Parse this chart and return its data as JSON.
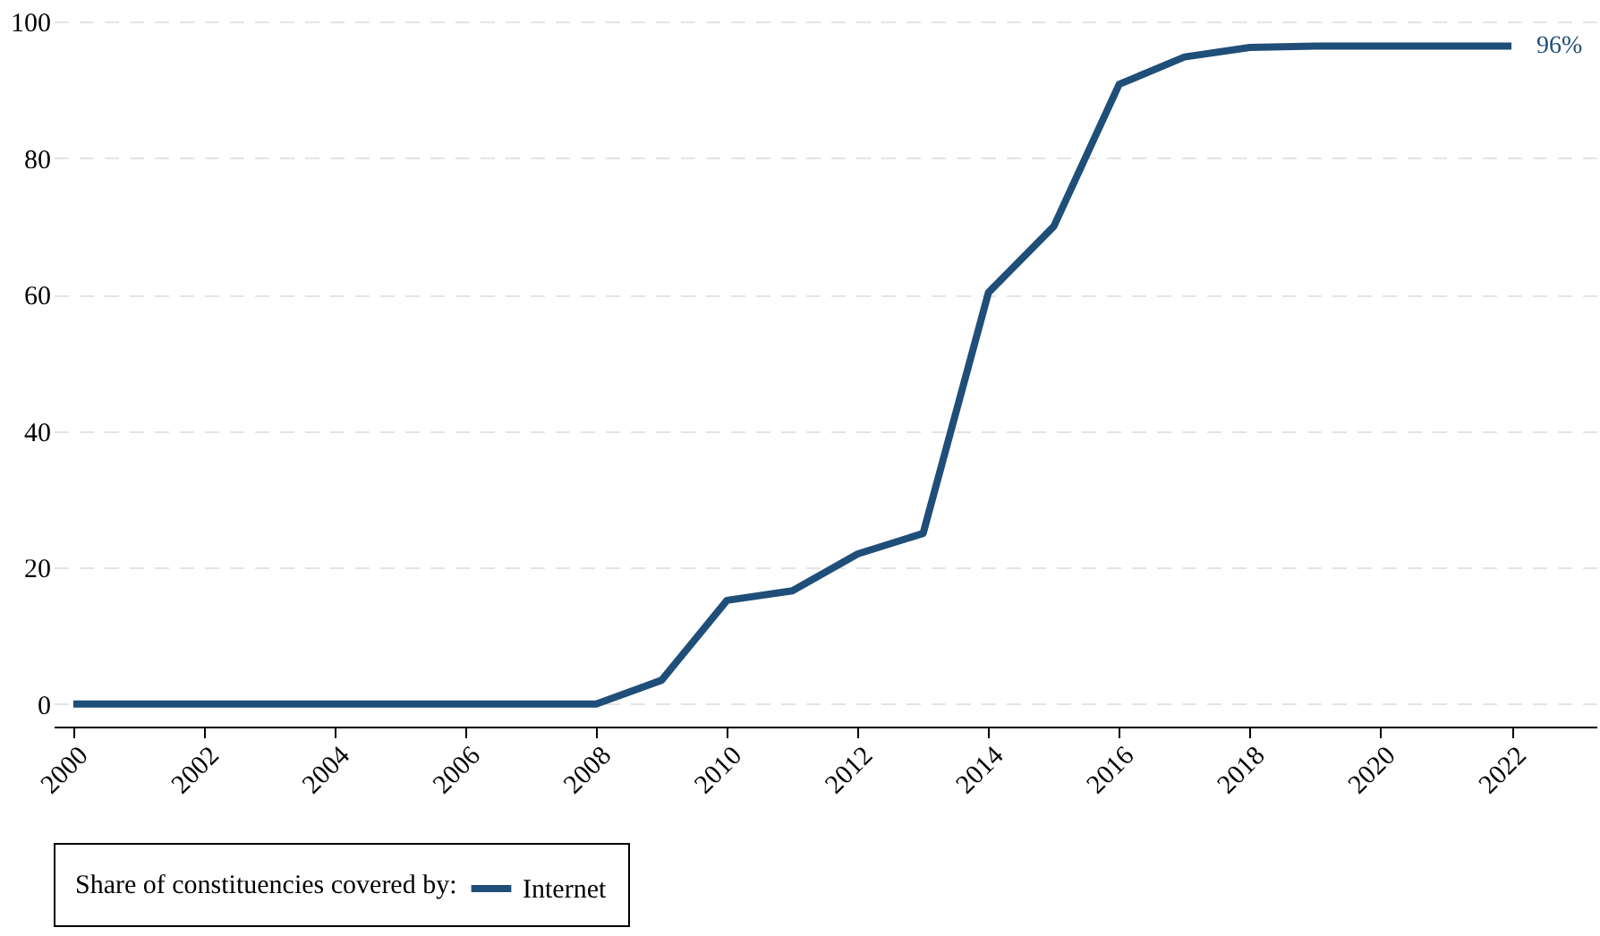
{
  "chart_data": {
    "type": "line",
    "x": [
      2000,
      2001,
      2002,
      2003,
      2004,
      2005,
      2006,
      2007,
      2008,
      2009,
      2010,
      2011,
      2012,
      2013,
      2014,
      2015,
      2016,
      2017,
      2018,
      2019,
      2020,
      2021,
      2022
    ],
    "series": [
      {
        "name": "Internet",
        "color": "#1f4e79",
        "values": [
          0,
          0,
          0,
          0,
          0,
          0,
          0,
          0,
          0,
          3.5,
          15.2,
          16.6,
          22,
          25,
          60.3,
          70,
          90.8,
          94.8,
          96.2,
          96.4,
          96.4,
          96.4,
          96.4
        ]
      }
    ],
    "legend_title": "Share of constituencies covered by:",
    "legend": "bottom",
    "xlim": [
      1999.7,
      2023.3
    ],
    "xticks": [
      2000,
      2002,
      2004,
      2006,
      2008,
      2010,
      2012,
      2014,
      2016,
      2018,
      2020,
      2022
    ],
    "ylim": [
      -3.3,
      100
    ],
    "yticks": [
      0,
      20,
      40,
      60,
      80,
      100
    ],
    "grid": "y",
    "marker": "none",
    "line_style": "solid",
    "annotations": [
      {
        "text": "96%",
        "x": 2022,
        "y": 96.4
      }
    ]
  }
}
